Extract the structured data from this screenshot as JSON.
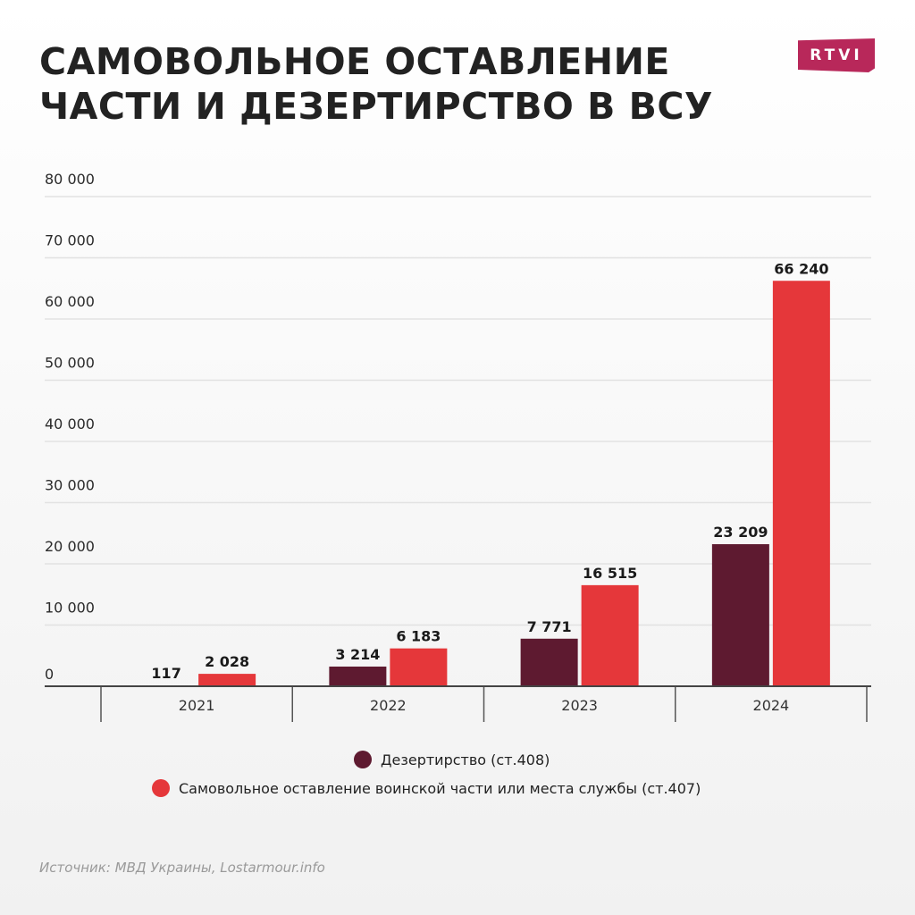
{
  "title_lines": [
    "САМОВОЛЬНОЕ ОСТАВЛЕНИЕ",
    "ЧАСТИ И ДЕЗЕРТИРСТВО В ВСУ"
  ],
  "logo": "RTVI",
  "source": "Источник: МВД Украины, Lostarmour.info",
  "colors": {
    "desertion": "#5e1a30",
    "awol": "#e5373a",
    "logo": "#b8285a"
  },
  "chart_data": {
    "type": "bar",
    "categories": [
      "2021",
      "2022",
      "2023",
      "2024"
    ],
    "series": [
      {
        "name": "Дезертирство (ст.408)",
        "values": [
          117,
          3214,
          7771,
          23209
        ],
        "labels": [
          "117",
          "3 214",
          "7 771",
          "23 209"
        ]
      },
      {
        "name": "Самовольное оставление воинской части или места службы (ст.407)",
        "values": [
          2028,
          6183,
          16515,
          66240
        ],
        "labels": [
          "2 028",
          "6 183",
          "16 515",
          "66 240"
        ]
      }
    ],
    "yticks": [
      0,
      10000,
      20000,
      30000,
      40000,
      50000,
      60000,
      70000,
      80000
    ],
    "ytick_labels": [
      "0",
      "10 000",
      "20 000",
      "30 000",
      "40 000",
      "50 000",
      "60 000",
      "70 000",
      "80 000"
    ],
    "ylim": [
      0,
      80000
    ],
    "grid": true,
    "legend_position": "bottom"
  }
}
